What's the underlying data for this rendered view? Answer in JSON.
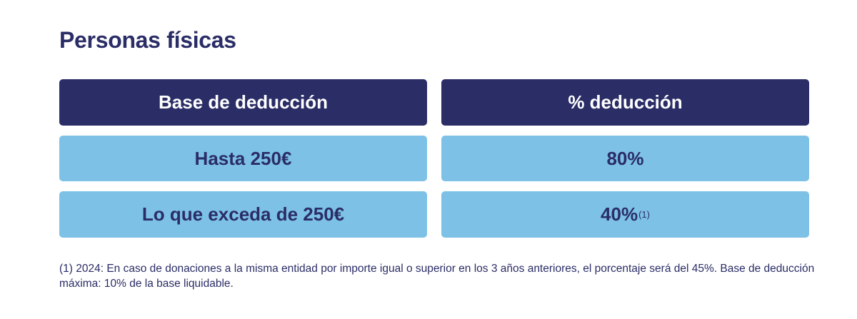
{
  "title": "Personas físicas",
  "table": {
    "headers": [
      "Base de deducción",
      "% deducción"
    ],
    "rows": [
      {
        "base": "Hasta 250€",
        "pct": "80%",
        "note_ref": ""
      },
      {
        "base": "Lo que exceda de 250€",
        "pct": "40%",
        "note_ref": "(1)"
      }
    ]
  },
  "colors": {
    "header_bg": "#2a2d66",
    "row_bg": "#7dc2e6",
    "text": "#2a2d66"
  },
  "footnote": "(1) 2024: En caso de donaciones a la misma entidad por importe igual o superior en los 3 años anteriores, el porcentaje será del 45%. Base de deducción máxima: 10% de la base liquidable."
}
